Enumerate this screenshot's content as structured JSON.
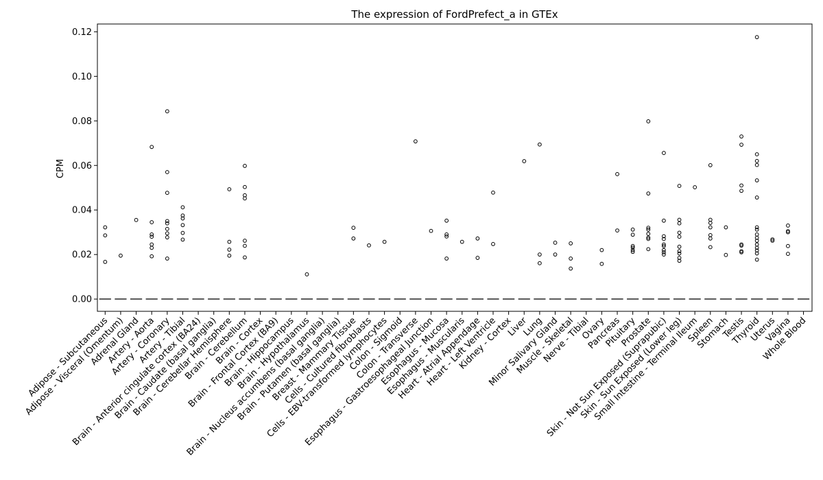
{
  "chart_data": {
    "type": "box",
    "title": "The expression of FordPrefect_a in GTEx",
    "xlabel": "",
    "ylabel": "CPM",
    "ylim": [
      -0.0055,
      0.1235
    ],
    "yticks": [
      0.0,
      0.02,
      0.04,
      0.06,
      0.08,
      0.1,
      0.12
    ],
    "ytick_labels": [
      "0.00",
      "0.02",
      "0.04",
      "0.06",
      "0.08",
      "0.10",
      "0.12"
    ],
    "grid": false,
    "median": 0.0,
    "categories": [
      "Adipose - Subcutaneous",
      "Adipose - Visceral (Omentum)",
      "Adrenal Gland",
      "Artery - Aorta",
      "Artery - Coronary",
      "Artery - Tibial",
      "Brain - Anterior cingulate cortex (BA24)",
      "Brain - Caudate (basal ganglia)",
      "Brain - Cerebellar Hemisphere",
      "Brain - Cerebellum",
      "Brain - Cortex",
      "Brain - Frontal Cortex (BA9)",
      "Brain - Hippocampus",
      "Brain - Hypothalamus",
      "Brain - Nucleus accumbens (basal ganglia)",
      "Brain - Putamen (basal ganglia)",
      "Breast - Mammary Tissue",
      "Cells - Cultured fibroblasts",
      "Cells - EBV-transformed lymphocytes",
      "Colon - Sigmoid",
      "Colon - Transverse",
      "Esophagus - Gastroesophageal Junction",
      "Esophagus - Mucosa",
      "Esophagus - Muscularis",
      "Heart - Atrial Appendage",
      "Heart - Left Ventricle",
      "Kidney - Cortex",
      "Liver",
      "Lung",
      "Minor Salivary Gland",
      "Muscle - Skeletal",
      "Nerve - Tibial",
      "Ovary",
      "Pancreas",
      "Pituitary",
      "Prostate",
      "Skin - Not Sun Exposed (Suprapubic)",
      "Skin - Sun Exposed (Lower leg)",
      "Small Intestine - Terminal Ileum",
      "Spleen",
      "Stomach",
      "Testis",
      "Thyroid",
      "Uterus",
      "Vagina",
      "Whole Blood"
    ],
    "outliers": [
      [
        0.0322,
        0.0286,
        0.0167
      ],
      [
        0.0195
      ],
      [
        0.0355
      ],
      [
        0.0683,
        0.0345,
        0.029,
        0.028,
        0.0245,
        0.023,
        0.0192
      ],
      [
        0.0843,
        0.057,
        0.0477,
        0.035,
        0.034,
        0.0315,
        0.0295,
        0.0277,
        0.0182
      ],
      [
        0.0412,
        0.0375,
        0.0362,
        0.0332,
        0.0297,
        0.0267
      ],
      [],
      [],
      [
        0.0493,
        0.0257,
        0.0222,
        0.0195
      ],
      [
        0.0598,
        0.0503,
        0.0466,
        0.0452,
        0.0262,
        0.0239,
        0.0187
      ],
      [],
      [],
      [],
      [
        0.0111
      ],
      [],
      [],
      [
        0.032,
        0.0272
      ],
      [
        0.0241
      ],
      [
        0.0257
      ],
      [],
      [
        0.0708
      ],
      [
        0.0306
      ],
      [
        0.0352,
        0.029,
        0.0281,
        0.0182
      ],
      [
        0.0257
      ],
      [
        0.0272,
        0.0185
      ],
      [
        0.0478,
        0.0247
      ],
      [],
      [
        0.0619
      ],
      [
        0.0694,
        0.02,
        0.0161
      ],
      [
        0.0253,
        0.02
      ],
      [
        0.025,
        0.0182,
        0.0137
      ],
      [],
      [
        0.022,
        0.0158
      ],
      [
        0.0561,
        0.0308
      ],
      [
        0.0312,
        0.0289,
        0.0238,
        0.0231,
        0.022,
        0.0212
      ],
      [
        0.0798,
        0.0474,
        0.032,
        0.0312,
        0.0293,
        0.0276,
        0.027,
        0.0224
      ],
      [
        0.0656,
        0.0352,
        0.0282,
        0.027,
        0.0245,
        0.0238,
        0.022,
        0.021,
        0.02
      ],
      [
        0.0508,
        0.0356,
        0.034,
        0.0298,
        0.028,
        0.0235,
        0.0215,
        0.0205,
        0.0185,
        0.0172
      ],
      [
        0.0502
      ],
      [
        0.0601,
        0.0356,
        0.0342,
        0.0322,
        0.0287,
        0.0272,
        0.0233
      ],
      [
        0.0322,
        0.0198
      ],
      [
        0.073,
        0.0693,
        0.051,
        0.0486,
        0.0245,
        0.024,
        0.0215,
        0.021
      ],
      [
        0.1176,
        0.065,
        0.062,
        0.0602,
        0.0533,
        0.0456,
        0.0322,
        0.0312,
        0.029,
        0.0275,
        0.0262,
        0.0245,
        0.023,
        0.0218,
        0.0205,
        0.0177
      ],
      [
        0.0268,
        0.0262
      ],
      [
        0.033,
        0.0305,
        0.03,
        0.0238,
        0.0203
      ],
      []
    ]
  }
}
